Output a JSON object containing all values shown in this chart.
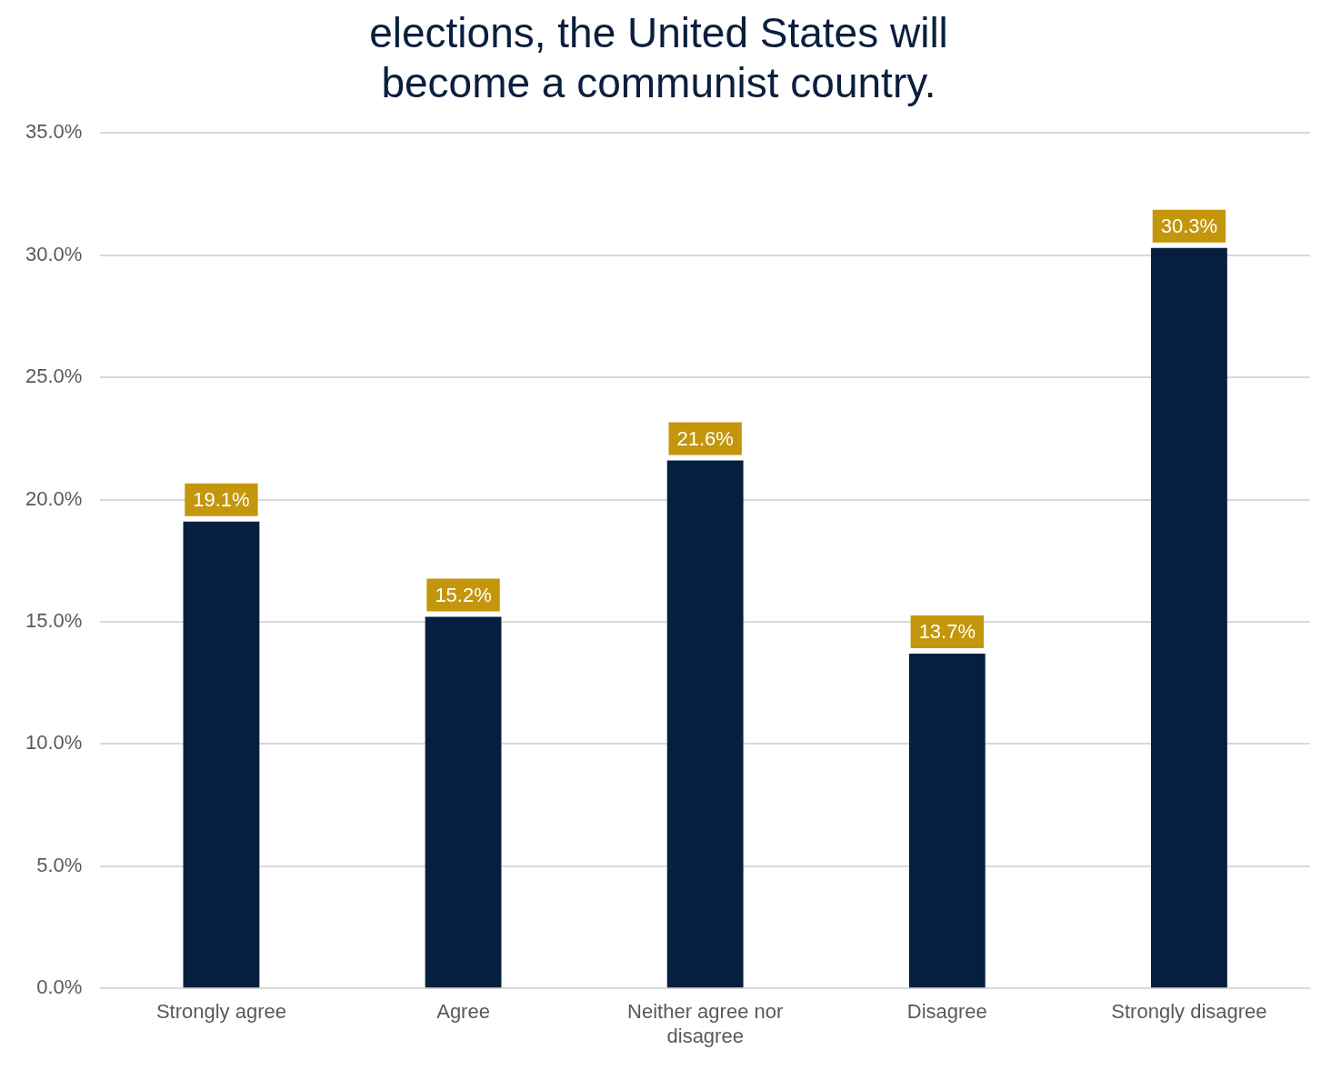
{
  "chart_data": {
    "type": "bar",
    "title": "elections, the United States will become a communist country.",
    "categories": [
      "Strongly agree",
      "Agree",
      "Neither agree nor disagree",
      "Disagree",
      "Strongly disagree"
    ],
    "values": [
      19.1,
      15.2,
      21.6,
      13.7,
      30.3
    ],
    "color": "#061f3f",
    "value_labels": [
      "19.1%",
      "15.2%",
      "21.6%",
      "13.7%",
      "30.3%"
    ],
    "ylim": [
      0,
      35
    ],
    "yticks": [
      {
        "value": 0,
        "label": "0.0%"
      },
      {
        "value": 5,
        "label": "5.0%"
      },
      {
        "value": 10,
        "label": "10.0%"
      },
      {
        "value": 15,
        "label": "15.0%"
      },
      {
        "value": 20,
        "label": "20.0%"
      },
      {
        "value": 25,
        "label": "25.0%"
      },
      {
        "value": 30,
        "label": "30.0%"
      },
      {
        "value": 35,
        "label": "35.0%"
      }
    ],
    "grid": "y",
    "legend": false
  }
}
